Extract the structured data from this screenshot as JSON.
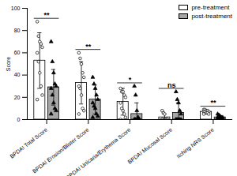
{
  "chart_data": {
    "type": "bar",
    "categories": [
      "BPDAI Total Score",
      "BPDAI Erosion/Blister Score",
      "BPDAI Urticaria/Erythema Score",
      "BPDAI Mucosal Score",
      "Itching NRS Score"
    ],
    "series": [
      {
        "name": "pre-treatment",
        "color": "#ffffff",
        "marker": "circle",
        "values": [
          53,
          33,
          16,
          2,
          7
        ],
        "errors": [
          25,
          19,
          12,
          3,
          2
        ],
        "points": [
          [
            88,
            75,
            70,
            68,
            65,
            60,
            52,
            42,
            30,
            22,
            18
          ],
          [
            60,
            55,
            50,
            42,
            38,
            30,
            28,
            22,
            10,
            8,
            5
          ],
          [
            28,
            25,
            25,
            22,
            20,
            15,
            10,
            8,
            5,
            2,
            0
          ],
          [
            8,
            6,
            5,
            0,
            0,
            0,
            0,
            0,
            0,
            0,
            0
          ],
          [
            9,
            9,
            8,
            8,
            7,
            7,
            7,
            6,
            6,
            5,
            5
          ]
        ]
      },
      {
        "name": "post-treatment",
        "color": "#a6a6a6",
        "marker": "triangle",
        "values": [
          29,
          18,
          5,
          6,
          2
        ],
        "errors": [
          16,
          13,
          10,
          9,
          1.5
        ],
        "points": [
          [
            70,
            52,
            42,
            32,
            30,
            28,
            22,
            15,
            10,
            8,
            5
          ],
          [
            38,
            32,
            28,
            22,
            18,
            15,
            12,
            10,
            5,
            3,
            2
          ],
          [
            30,
            22,
            8,
            2,
            0,
            0,
            0,
            0,
            0,
            0,
            0
          ],
          [
            25,
            18,
            15,
            8,
            5,
            0,
            0,
            0,
            0,
            0,
            0
          ],
          [
            5,
            4,
            3,
            2,
            2,
            2,
            1,
            1,
            0,
            0,
            0
          ]
        ]
      }
    ],
    "significance": [
      "**",
      "**",
      "*",
      "ns",
      "**"
    ],
    "ylabel": "Score",
    "ylim": [
      0,
      100
    ],
    "yticks": [
      0,
      20,
      40,
      60,
      80,
      100
    ],
    "legend": "top-right"
  }
}
